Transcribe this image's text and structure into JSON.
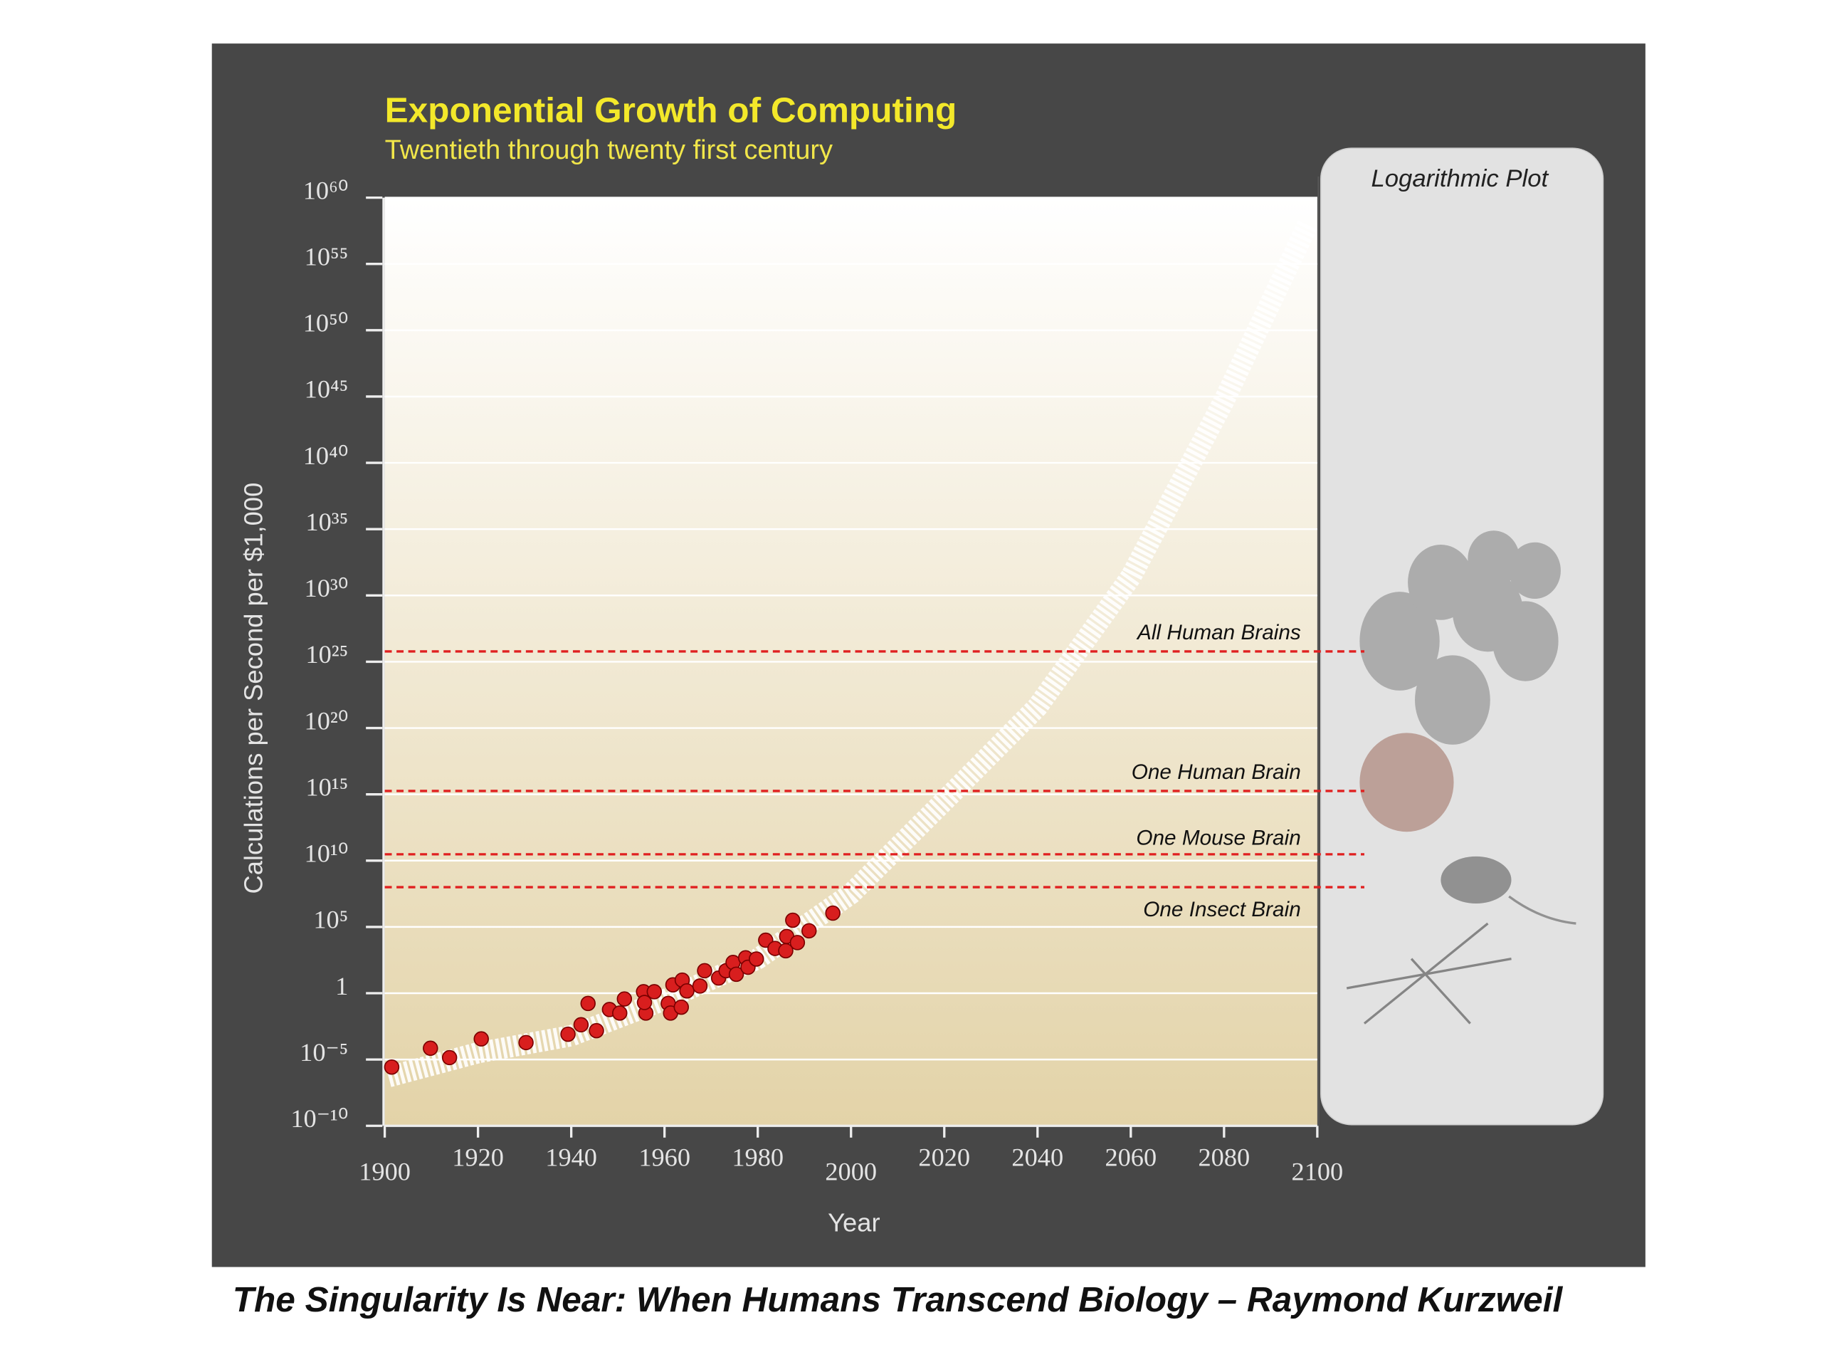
{
  "chart_data": {
    "type": "scatter",
    "title": "Exponential Growth of Computing",
    "subtitle": "Twentieth through twenty first century",
    "x_label": "Year",
    "y_label": "Calculations per Second per $1,000",
    "panel_label": "Logarithmic Plot",
    "x": [
      1901.5,
      1909.8,
      1913.9,
      1920.7,
      1930.3,
      1939.3,
      1942.1,
      1943.6,
      1945.4,
      1948.2,
      1950.4,
      1951.4,
      1955.5,
      1956.0,
      1955.7,
      1957.8,
      1960.8,
      1961.3,
      1961.8,
      1963.6,
      1963.8,
      1964.8,
      1967.6,
      1968.6,
      1971.6,
      1973.2,
      1974.7,
      1975.4,
      1977.4,
      1977.9,
      1979.7,
      1981.7,
      1983.7,
      1986.0,
      1986.2,
      1987.5,
      1988.5,
      1991.0,
      1996.1
    ],
    "values": [
      2.7e-06,
      7.1e-05,
      1.4e-05,
      0.00036,
      0.00019,
      0.00081,
      0.0042,
      0.17,
      0.0015,
      0.059,
      0.032,
      0.37,
      1.3,
      0.032,
      0.2,
      1.3,
      0.17,
      0.032,
      4.3,
      0.089,
      9.8,
      1.5,
      3.5,
      50,
      14,
      50,
      210,
      27,
      470,
      91,
      380,
      10000,
      2400,
      1600,
      19000,
      320000,
      6600,
      51000,
      1100000
    ],
    "color": "#d81e1e",
    "trend": {
      "x": [
        1900.8,
        1920,
        1940,
        1960,
        1980,
        2000,
        2020,
        2040,
        2060,
        2080,
        2098
      ],
      "values": [
        5e-07,
        3.2e-05,
        0.00063,
        0.32,
        400,
        32000000.0,
        320000000000000.0,
        4e+21,
        2.5e+31,
        5e+44,
        1e+58
      ],
      "color": "#ffffff"
    },
    "reference_lines": [
      {
        "label": "All Human Brains",
        "value": 6e+25
      },
      {
        "label": "One Human Brain",
        "value": 1800000000000000.0
      },
      {
        "label": "One Mouse Brain",
        "value": 30000000000.0
      },
      {
        "label": "One Insect Brain",
        "value": 100000000.0
      }
    ],
    "reference_color": "#e02020",
    "xlim": [
      1900,
      2100
    ],
    "xticks": [
      1900,
      1920,
      1940,
      1960,
      1980,
      2000,
      2020,
      2040,
      2060,
      2080,
      2100
    ],
    "ylim": [
      1e-10,
      1e+60
    ],
    "log_y": true,
    "grid": true,
    "yticks": [
      {
        "value": 1e-10,
        "label": "10⁻¹⁰"
      },
      {
        "value": 1e-05,
        "label": "10⁻⁵"
      },
      1,
      {
        "value": 100000.0,
        "label": "10⁵"
      },
      {
        "value": 10000000000.0,
        "label": "10¹⁰"
      },
      {
        "value": 1000000000000000.0,
        "label": "10¹⁵"
      },
      {
        "value": 1e+20,
        "label": "10²⁰"
      },
      {
        "value": 1e+25,
        "label": "10²⁵"
      },
      {
        "value": 1e+30,
        "label": "10³⁰"
      },
      {
        "value": 1e+35,
        "label": "10³⁵"
      },
      {
        "value": 1e+40,
        "label": "10⁴⁰"
      },
      {
        "value": 1e+45,
        "label": "10⁴⁵"
      },
      {
        "value": 1e+50,
        "label": "10⁵⁰"
      },
      {
        "value": 1e+55,
        "label": "10⁵⁵"
      },
      {
        "value": 1e+60,
        "label": "10⁶⁰"
      }
    ]
  },
  "caption": "The Singularity Is Near: When Humans Transcend Biology – Raymond Kurzweil"
}
